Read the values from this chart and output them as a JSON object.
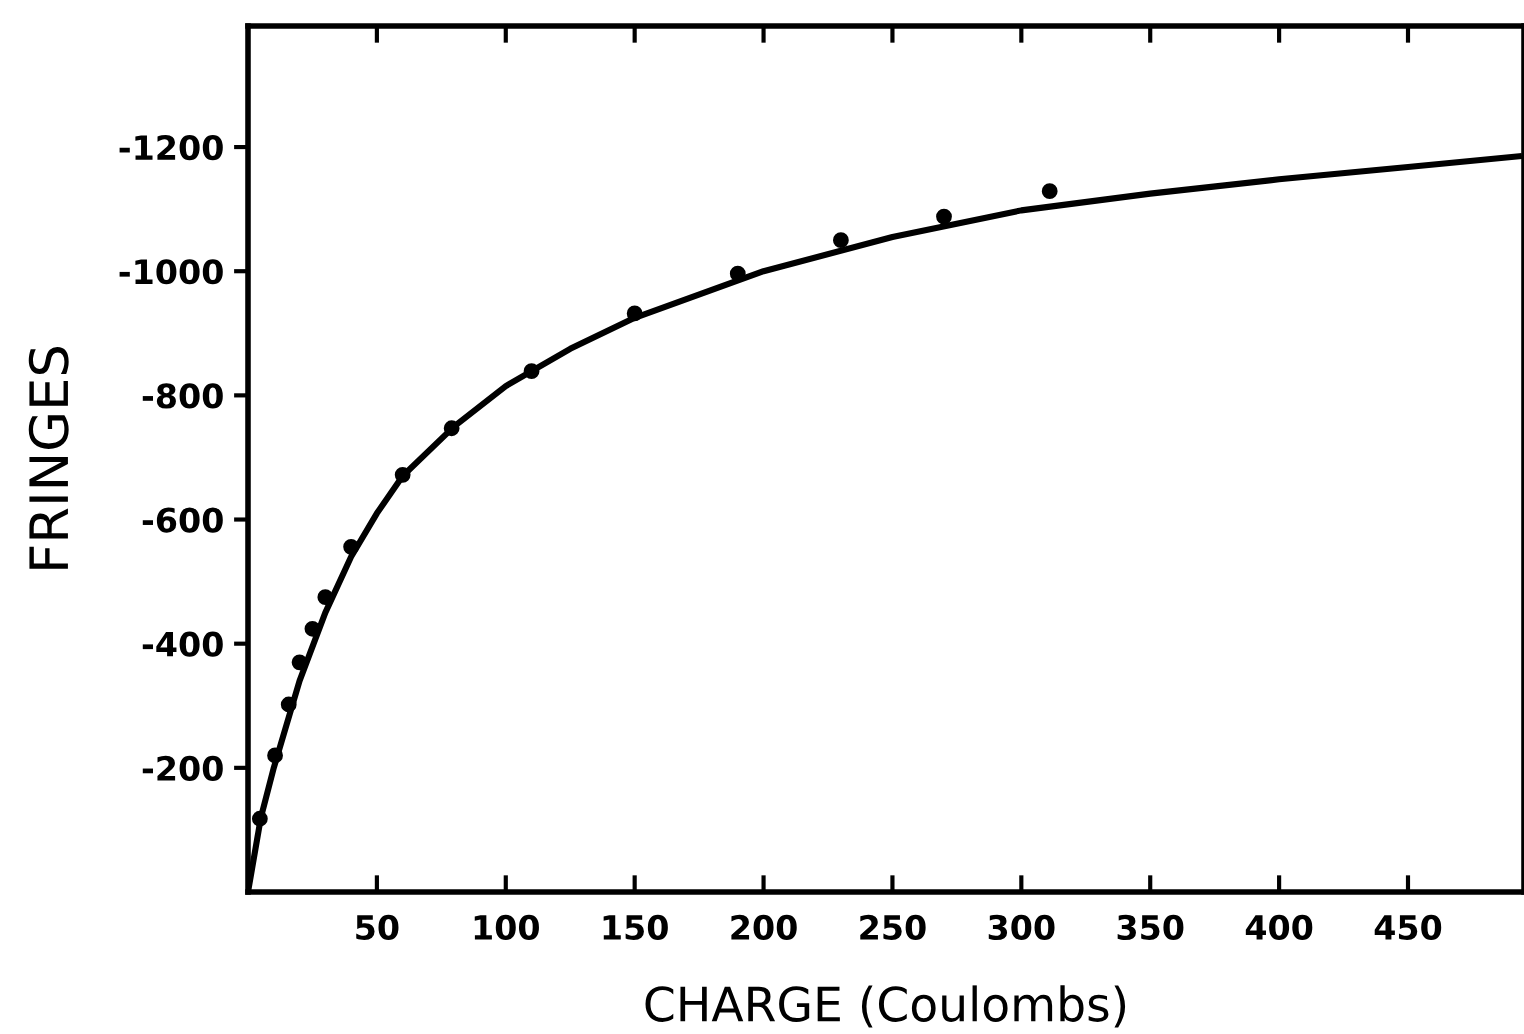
{
  "chart_data": {
    "type": "scatter",
    "xlabel": "CHARGE (Coulombs)",
    "ylabel": "FRINGES",
    "xlim": [
      0,
      495
    ],
    "ylim": [
      0,
      -1395
    ],
    "xticks": [
      50,
      100,
      150,
      200,
      250,
      300,
      350,
      400,
      450
    ],
    "yticks": [
      -200,
      -400,
      -600,
      -800,
      -1000,
      -1200
    ],
    "grid": false,
    "legend": false,
    "series": [
      {
        "marker": "circle",
        "color": "#000000",
        "x": [
          4.6,
          10.5,
          15.8,
          20,
          25,
          30,
          40,
          60,
          79,
          110,
          150,
          190,
          230,
          270,
          311
        ],
        "values": [
          -118,
          -220,
          -302,
          -370,
          -424,
          -475,
          -556,
          -672,
          -747,
          -839,
          -932,
          -996,
          -1050,
          -1088,
          -1129
        ]
      },
      {
        "type": "line",
        "color": "#000000",
        "line_style": "solid",
        "x": [
          0,
          5,
          10,
          20,
          30,
          40,
          50,
          60,
          80,
          100,
          125,
          150,
          200,
          250,
          300,
          350,
          400,
          450,
          493
        ],
        "values": [
          0,
          -120,
          -200,
          -340,
          -450,
          -540,
          -610,
          -670,
          -750,
          -815,
          -875,
          -925,
          -1000,
          -1055,
          -1098,
          -1125,
          -1148,
          -1168,
          -1185
        ]
      }
    ]
  }
}
